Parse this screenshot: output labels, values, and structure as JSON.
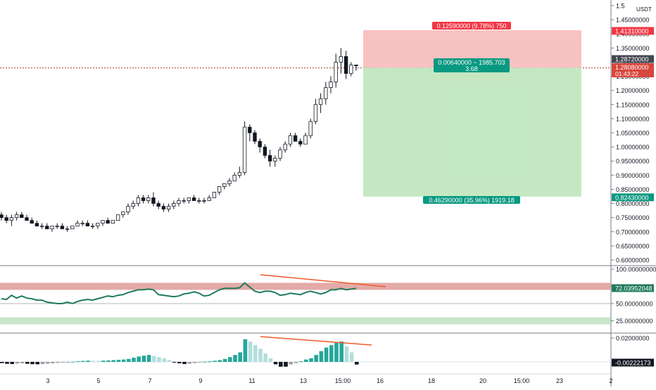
{
  "colors": {
    "up": "#ffffff",
    "down": "#131722",
    "wick": "#131722",
    "rsi_line": "#1f7a5c",
    "trend_line": "#f05a28",
    "stop_zone": "#f7b3b3",
    "target_zone": "#bfe6bd",
    "stop_label": "#f23645",
    "target_label": "#089981",
    "price_line": "#a33b2f",
    "macd_up_strong": "#26a69a",
    "macd_up_weak": "#b2dfdb",
    "macd_down_strong": "#131722",
    "macd_down_weak": "#9e9e9e"
  },
  "chart_data": [
    {
      "type": "candlestick",
      "currency": "USDT",
      "ylim": [
        0.58,
        1.51
      ],
      "y_ticks": [
        "1.5",
        "1.45000000",
        "1.40000000",
        "1.35000000",
        "1.30000000",
        "1.25000000",
        "1.20000000",
        "1.15000000",
        "1.10000000",
        "1.05000000",
        "1.00000000",
        "0.95000000",
        "0.90000000",
        "0.85000000",
        "0.80000000",
        "0.75000000",
        "0.70000000",
        "0.65000000",
        "0.60000000"
      ],
      "x_ticks": [
        "3",
        "5",
        "7",
        "9",
        "11",
        "13",
        "15:00",
        "16",
        "18",
        "20",
        "15:00",
        "23",
        "2"
      ],
      "candles": [
        [
          0.76,
          0.77,
          0.74,
          0.75
        ],
        [
          0.75,
          0.76,
          0.73,
          0.74
        ],
        [
          0.74,
          0.76,
          0.72,
          0.75
        ],
        [
          0.75,
          0.77,
          0.74,
          0.76
        ],
        [
          0.76,
          0.77,
          0.75,
          0.75
        ],
        [
          0.75,
          0.76,
          0.74,
          0.74
        ],
        [
          0.74,
          0.75,
          0.73,
          0.73
        ],
        [
          0.73,
          0.74,
          0.72,
          0.72
        ],
        [
          0.72,
          0.73,
          0.71,
          0.72
        ],
        [
          0.72,
          0.73,
          0.71,
          0.71
        ],
        [
          0.71,
          0.72,
          0.7,
          0.72
        ],
        [
          0.72,
          0.73,
          0.71,
          0.72
        ],
        [
          0.72,
          0.73,
          0.71,
          0.71
        ],
        [
          0.71,
          0.72,
          0.7,
          0.71
        ],
        [
          0.71,
          0.72,
          0.71,
          0.72
        ],
        [
          0.72,
          0.74,
          0.72,
          0.73
        ],
        [
          0.73,
          0.74,
          0.72,
          0.73
        ],
        [
          0.73,
          0.74,
          0.72,
          0.72
        ],
        [
          0.72,
          0.73,
          0.71,
          0.72
        ],
        [
          0.72,
          0.73,
          0.71,
          0.73
        ],
        [
          0.73,
          0.74,
          0.72,
          0.74
        ],
        [
          0.74,
          0.75,
          0.73,
          0.73
        ],
        [
          0.73,
          0.74,
          0.73,
          0.74
        ],
        [
          0.74,
          0.76,
          0.74,
          0.76
        ],
        [
          0.76,
          0.77,
          0.75,
          0.77
        ],
        [
          0.77,
          0.8,
          0.76,
          0.79
        ],
        [
          0.79,
          0.81,
          0.78,
          0.8
        ],
        [
          0.8,
          0.83,
          0.79,
          0.82
        ],
        [
          0.82,
          0.83,
          0.8,
          0.81
        ],
        [
          0.81,
          0.83,
          0.8,
          0.82
        ],
        [
          0.82,
          0.84,
          0.79,
          0.8
        ],
        [
          0.8,
          0.81,
          0.78,
          0.79
        ],
        [
          0.79,
          0.8,
          0.77,
          0.78
        ],
        [
          0.78,
          0.8,
          0.77,
          0.79
        ],
        [
          0.79,
          0.81,
          0.78,
          0.8
        ],
        [
          0.8,
          0.82,
          0.79,
          0.81
        ],
        [
          0.81,
          0.82,
          0.8,
          0.81
        ],
        [
          0.81,
          0.82,
          0.8,
          0.82
        ],
        [
          0.82,
          0.83,
          0.81,
          0.81
        ],
        [
          0.81,
          0.82,
          0.8,
          0.81
        ],
        [
          0.81,
          0.82,
          0.8,
          0.81
        ],
        [
          0.81,
          0.83,
          0.81,
          0.82
        ],
        [
          0.82,
          0.84,
          0.82,
          0.84
        ],
        [
          0.84,
          0.86,
          0.83,
          0.86
        ],
        [
          0.86,
          0.87,
          0.85,
          0.87
        ],
        [
          0.87,
          0.89,
          0.86,
          0.88
        ],
        [
          0.88,
          0.91,
          0.88,
          0.9
        ],
        [
          0.9,
          0.93,
          0.89,
          0.91
        ],
        [
          0.91,
          1.09,
          0.9,
          1.07
        ],
        [
          1.07,
          1.08,
          1.02,
          1.05
        ],
        [
          1.05,
          1.06,
          1.01,
          1.02
        ],
        [
          1.02,
          1.03,
          0.98,
          1.0
        ],
        [
          1.0,
          1.01,
          0.96,
          0.97
        ],
        [
          0.97,
          0.99,
          0.93,
          0.95
        ],
        [
          0.95,
          0.97,
          0.93,
          0.96
        ],
        [
          0.96,
          1.0,
          0.95,
          0.99
        ],
        [
          0.99,
          1.02,
          0.98,
          1.01
        ],
        [
          1.01,
          1.05,
          1.0,
          1.04
        ],
        [
          1.04,
          1.05,
          1.02,
          1.02
        ],
        [
          1.02,
          1.03,
          1.0,
          1.01
        ],
        [
          1.01,
          1.05,
          1.01,
          1.04
        ],
        [
          1.04,
          1.1,
          1.03,
          1.09
        ],
        [
          1.09,
          1.17,
          1.08,
          1.15
        ],
        [
          1.15,
          1.19,
          1.12,
          1.17
        ],
        [
          1.17,
          1.23,
          1.15,
          1.21
        ],
        [
          1.21,
          1.25,
          1.19,
          1.23
        ],
        [
          1.23,
          1.33,
          1.21,
          1.3
        ],
        [
          1.3,
          1.35,
          1.26,
          1.32
        ],
        [
          1.32,
          1.34,
          1.24,
          1.26
        ],
        [
          1.26,
          1.3,
          1.25,
          1.29
        ],
        [
          1.29,
          1.29,
          1.27,
          1.287
        ]
      ]
    },
    {
      "type": "line",
      "indicator": "RSI",
      "ylim": [
        0,
        100
      ],
      "y_ticks": [
        "100.00000000",
        "75.00000000",
        "50.00000000",
        "25.00000000"
      ],
      "current": "72.03952048",
      "values": [
        57,
        56,
        62,
        58,
        61,
        58,
        57,
        55,
        55,
        52,
        51,
        50,
        50,
        52,
        50,
        53,
        55,
        56,
        55,
        57,
        59,
        61,
        60,
        62,
        63,
        66,
        68,
        70,
        70,
        71,
        70,
        63,
        62,
        61,
        60,
        61,
        64,
        65,
        67,
        65,
        61,
        62,
        66,
        70,
        72,
        72,
        72,
        73,
        80,
        74,
        68,
        66,
        68,
        68,
        66,
        62,
        63,
        65,
        64,
        63,
        66,
        68,
        66,
        64,
        66,
        70,
        70,
        72,
        70,
        71,
        72
      ]
    },
    {
      "type": "bar",
      "indicator": "MACD histogram",
      "ylim": [
        -0.005,
        0.022
      ],
      "y_ticks": [
        "0.02000000"
      ],
      "current": "-0.00222173",
      "values": [
        -0.001,
        -0.0016,
        -0.0018,
        -0.0014,
        -0.0012,
        -0.0016,
        -0.0019,
        -0.002,
        -0.0018,
        -0.0015,
        -0.0012,
        -0.0008,
        -0.0005,
        -0.0003,
        0.0002,
        0.0005,
        0.0008,
        0.001,
        0.0009,
        0.0008,
        0.001,
        0.0012,
        0.0015,
        0.0017,
        0.002,
        0.0025,
        0.0035,
        0.0045,
        0.0052,
        0.0058,
        0.005,
        0.004,
        0.003,
        0.0015,
        -0.0005,
        -0.0012,
        -0.0018,
        -0.0015,
        -0.001,
        -0.0005,
        0.0002,
        0.0004,
        0.0009,
        0.0015,
        0.0025,
        0.004,
        0.0058,
        0.008,
        0.019,
        0.017,
        0.014,
        0.011,
        0.007,
        0.003,
        -0.002,
        -0.004,
        -0.004,
        -0.002,
        -0.001,
        0.0005,
        0.002,
        0.003,
        0.0058,
        0.009,
        0.012,
        0.014,
        0.016,
        0.017,
        0.013,
        0.008,
        -0.0022
      ]
    }
  ],
  "axis": {
    "currency": "USDT",
    "price_labels": {
      "stop": "1.41310000",
      "last_a": "1.28720000",
      "last_b": "1.28080000",
      "timer": "01:43:22",
      "target": "0.82430000"
    },
    "rsi_label": "72.03952048",
    "macd_label": "-0.00222173"
  },
  "position": {
    "entry": 1.2808,
    "stop": 1.4131,
    "target": 0.8243,
    "stop_text": "0.12590000 (9.78%) 750",
    "entry_text_line1": "0.00640000 ~ 1985.703",
    "entry_text_line2": "3.68",
    "target_text": "0.46290000 (35.96%) 1919.18"
  }
}
